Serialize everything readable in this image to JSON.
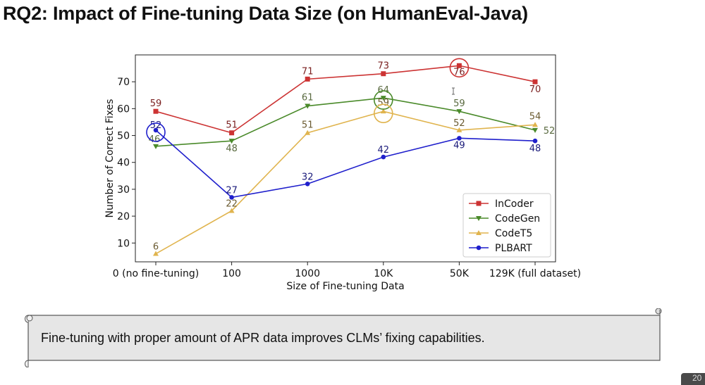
{
  "slide": {
    "title": "RQ2: Impact of Fine-tuning Data Size (on HumanEval-Java)",
    "callout_text": "Fine-tuning with proper amount of APR data improves CLMs’ fixing capabilities.",
    "page_number": "20"
  },
  "chart_data": {
    "type": "line",
    "title": "",
    "xlabel": "Size of Fine-tuning Data",
    "ylabel": "Number of Correct Fixes",
    "categories": [
      "0 (no fine-tuning)",
      "100",
      "1000",
      "10K",
      "50K",
      "129K (full dataset)"
    ],
    "ylim": [
      3,
      80
    ],
    "yticks": [
      10,
      20,
      30,
      40,
      50,
      60,
      70
    ],
    "grid": false,
    "legend_position": "lower-right",
    "series": [
      {
        "name": "InCoder",
        "color": "#cc3333",
        "marker": "square",
        "values": [
          59,
          51,
          71,
          73,
          76,
          70
        ]
      },
      {
        "name": "CodeGen",
        "color": "#4a8a2a",
        "marker": "triangle-down",
        "values": [
          46,
          48,
          61,
          64,
          59,
          52
        ]
      },
      {
        "name": "CodeT5",
        "color": "#e0b44e",
        "marker": "triangle-up",
        "values": [
          6,
          22,
          51,
          59,
          52,
          54
        ]
      },
      {
        "name": "PLBART",
        "color": "#1f1fcc",
        "marker": "circle",
        "values": [
          52,
          27,
          32,
          42,
          49,
          48
        ]
      }
    ],
    "highlights": [
      {
        "series": "InCoder",
        "category": "50K"
      },
      {
        "series": "CodeGen",
        "category": "10K"
      },
      {
        "series": "CodeT5",
        "category": "10K"
      },
      {
        "series": "PLBART",
        "category": "0 (no fine-tuning)"
      }
    ]
  }
}
